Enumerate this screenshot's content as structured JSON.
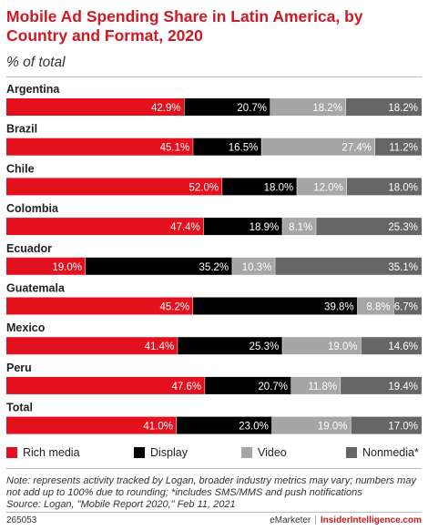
{
  "title": "Mobile Ad Spending Share in Latin America, by Country and Format, 2020",
  "subtitle": "% of total",
  "note": "Note: represents activity tracked by Logan, broader industry metrics may vary; numbers may not add up to 100% due to rounding; *includes SMS/MMS and push notifications",
  "source": "Source: Logan, \"Mobile Report 2020,\" Feb 11, 2021",
  "footer": {
    "chart_id": "265053",
    "brand": "eMarketer",
    "site": "InsiderIntelligence.com"
  },
  "chart_data": {
    "type": "bar",
    "orientation": "horizontal",
    "stacked": true,
    "categories": [
      "Argentina",
      "Brazil",
      "Chile",
      "Colombia",
      "Ecuador",
      "Guatemala",
      "Mexico",
      "Peru",
      "Total"
    ],
    "highlighted_category": "Total",
    "series": [
      {
        "name": "Rich media",
        "color": "#e3101d",
        "values": [
          42.9,
          45.1,
          52.0,
          47.4,
          19.0,
          45.2,
          41.4,
          47.6,
          41.0
        ]
      },
      {
        "name": "Display",
        "color": "#000000",
        "values": [
          20.7,
          16.5,
          18.0,
          18.9,
          35.2,
          39.8,
          25.3,
          20.7,
          23.0
        ]
      },
      {
        "name": "Video",
        "color": "#a6a6a6",
        "values": [
          18.2,
          27.4,
          12.0,
          8.1,
          10.3,
          8.8,
          19.0,
          11.8,
          19.0
        ]
      },
      {
        "name": "Nonmedia*",
        "color": "#666666",
        "values": [
          18.2,
          11.2,
          18.0,
          25.3,
          35.1,
          6.7,
          14.6,
          19.4,
          17.0
        ]
      }
    ],
    "value_suffix": "%",
    "legend_position": "bottom",
    "grid": false
  }
}
